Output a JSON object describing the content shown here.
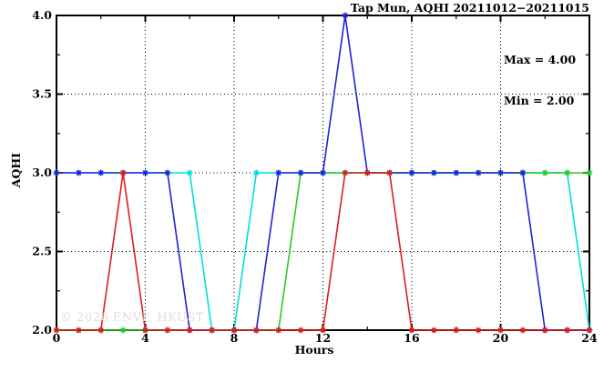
{
  "title": "Tap Mun, AQHI 20211012−20211015",
  "watermark": "© 2026 ENVF, HKUST",
  "chart_data": {
    "type": "line",
    "title": "Tap Mun, AQHI 20211012−20211015",
    "xlabel": "Hours",
    "ylabel": "AQHI",
    "xlim": [
      0,
      24
    ],
    "ylim": [
      2.0,
      4.0
    ],
    "grid": true,
    "legend_position": "none",
    "annotations": {
      "max": "Max = 4.00",
      "min": "Min = 2.00"
    },
    "xticks_major": [
      0,
      4,
      8,
      12,
      16,
      20,
      24
    ],
    "xtick_labels": [
      "0",
      "4",
      "8",
      "12",
      "16",
      "20",
      "24"
    ],
    "xticks_minor": [
      2,
      6,
      10,
      14,
      18,
      22
    ],
    "yticks_major": [
      2.0,
      2.5,
      3.0,
      3.5,
      4.0
    ],
    "ytick_labels": [
      "2.0",
      "2.5",
      "3.0",
      "3.5",
      "4.0"
    ],
    "yticks_minor": [
      2.25,
      2.75,
      3.25,
      3.75
    ],
    "grid_x": [
      4,
      8,
      12,
      16,
      20
    ],
    "grid_y": [
      2.5,
      3.0,
      3.5
    ],
    "axis_color": "#000000",
    "grid_color": "#000000",
    "x": [
      0,
      1,
      2,
      3,
      4,
      5,
      6,
      7,
      8,
      9,
      10,
      11,
      12,
      13,
      14,
      15,
      16,
      17,
      18,
      19,
      20,
      21,
      22,
      23,
      24
    ],
    "series": [
      {
        "name": "cyan",
        "color": "#00dddd",
        "values": [
          3,
          3,
          3,
          3,
          3,
          3,
          3,
          2,
          2,
          3,
          3,
          3,
          3,
          3,
          3,
          3,
          3,
          3,
          3,
          3,
          3,
          3,
          3,
          3,
          2
        ]
      },
      {
        "name": "green",
        "color": "#28cc28",
        "values": [
          2,
          2,
          2,
          2,
          2,
          2,
          2,
          2,
          2,
          2,
          2,
          3,
          3,
          3,
          3,
          3,
          3,
          3,
          3,
          3,
          3,
          3,
          3,
          3,
          3
        ]
      },
      {
        "name": "blue",
        "color": "#2121d8",
        "values": [
          3,
          3,
          3,
          3,
          3,
          3,
          2,
          2,
          2,
          2,
          3,
          3,
          3,
          4,
          3,
          3,
          3,
          3,
          3,
          3,
          3,
          3,
          2,
          2,
          2
        ]
      },
      {
        "name": "red",
        "color": "#dd1c1c",
        "values": [
          2,
          2,
          2,
          3,
          2,
          2,
          2,
          2,
          2,
          2,
          2,
          2,
          2,
          3,
          3,
          3,
          2,
          2,
          2,
          2,
          2,
          2,
          2,
          2,
          2
        ]
      }
    ]
  }
}
